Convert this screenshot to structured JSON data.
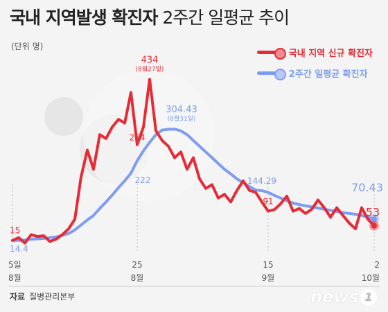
{
  "header": {
    "title_bold": "국내 지역발생 확진자",
    "title_light": "2주간 일평균 추이",
    "unit_label": "(단위 명)"
  },
  "colors": {
    "local": "#e52b35",
    "avg": "#7d9df0"
  },
  "legend": {
    "local": "국내 지역 신규 확진자",
    "avg": "2주간 일평균 확진자"
  },
  "source": {
    "label": "자료",
    "value": "질병관리본부"
  },
  "logo": {
    "text": "news",
    "mark": "1"
  },
  "chart_data": {
    "type": "line",
    "title": "국내 지역발생 확진자 2주간 일평균 추이",
    "ylabel": "(단위 명)",
    "x": [
      "8/5",
      "8/6",
      "8/7",
      "8/8",
      "8/9",
      "8/10",
      "8/11",
      "8/12",
      "8/13",
      "8/14",
      "8/15",
      "8/16",
      "8/17",
      "8/18",
      "8/19",
      "8/20",
      "8/21",
      "8/22",
      "8/23",
      "8/24",
      "8/25",
      "8/26",
      "8/27",
      "8/28",
      "8/29",
      "8/30",
      "8/31",
      "9/1",
      "9/2",
      "9/3",
      "9/4",
      "9/5",
      "9/6",
      "9/7",
      "9/8",
      "9/9",
      "9/10",
      "9/11",
      "9/12",
      "9/13",
      "9/14",
      "9/15",
      "9/16",
      "9/17",
      "9/18",
      "9/19",
      "9/20",
      "9/21",
      "9/22",
      "9/23",
      "9/24",
      "9/25",
      "9/26",
      "9/27",
      "9/28",
      "9/29",
      "9/30",
      "10/1",
      "10/2"
    ],
    "ylim": [
      0,
      460
    ],
    "series": [
      {
        "name": "국내 지역 신규 확진자",
        "values": [
          15,
          22,
          8,
          30,
          25,
          27,
          12,
          18,
          30,
          45,
          70,
          180,
          250,
          200,
          290,
          280,
          310,
          330,
          320,
          400,
          264,
          310,
          434,
          300,
          275,
          260,
          230,
          245,
          200,
          230,
          175,
          150,
          160,
          125,
          135,
          115,
          145,
          170,
          145,
          140,
          115,
          91,
          95,
          110,
          130,
          91,
          98,
          85,
          96,
          120,
          100,
          75,
          100,
          80,
          60,
          45,
          100,
          70,
          53
        ]
      },
      {
        "name": "2주간 일평균 확진자",
        "values": [
          14.4,
          15,
          16,
          18,
          19,
          20,
          22,
          24,
          28,
          33,
          42,
          55,
          68,
          80,
          98,
          115,
          133,
          152,
          170,
          190,
          222,
          248,
          270,
          290,
          302,
          304,
          304.43,
          300,
          290,
          275,
          260,
          245,
          230,
          215,
          200,
          188,
          175,
          165,
          155,
          146,
          144.29,
          140,
          132,
          125,
          118,
          112,
          108,
          105,
          102,
          99,
          96,
          93,
          90,
          87,
          85,
          83,
          80,
          75,
          70.43
        ]
      }
    ],
    "annotations": [
      {
        "series": 0,
        "index": 0,
        "label": "15"
      },
      {
        "series": 0,
        "index": 20,
        "label": "264"
      },
      {
        "series": 0,
        "index": 22,
        "label": "434",
        "sublabel": "(8월27일)"
      },
      {
        "series": 0,
        "index": 41,
        "label": "91"
      },
      {
        "series": 0,
        "index": 58,
        "label": "53"
      },
      {
        "series": 1,
        "index": 0,
        "label": "14.4"
      },
      {
        "series": 1,
        "index": 20,
        "label": "222"
      },
      {
        "series": 1,
        "index": 26,
        "label": "304.43",
        "sublabel": "(8월31일)"
      },
      {
        "series": 1,
        "index": 40,
        "label": "144.29"
      },
      {
        "series": 1,
        "index": 58,
        "label": "70.43"
      }
    ],
    "x_ticks": [
      {
        "index": 0,
        "day": "5일",
        "month": "8월"
      },
      {
        "index": 20,
        "day": "25",
        "month": "8월"
      },
      {
        "index": 41,
        "day": "15",
        "month": "9월"
      },
      {
        "index": 58,
        "day": "2",
        "month": "10월"
      }
    ],
    "grid": false
  }
}
